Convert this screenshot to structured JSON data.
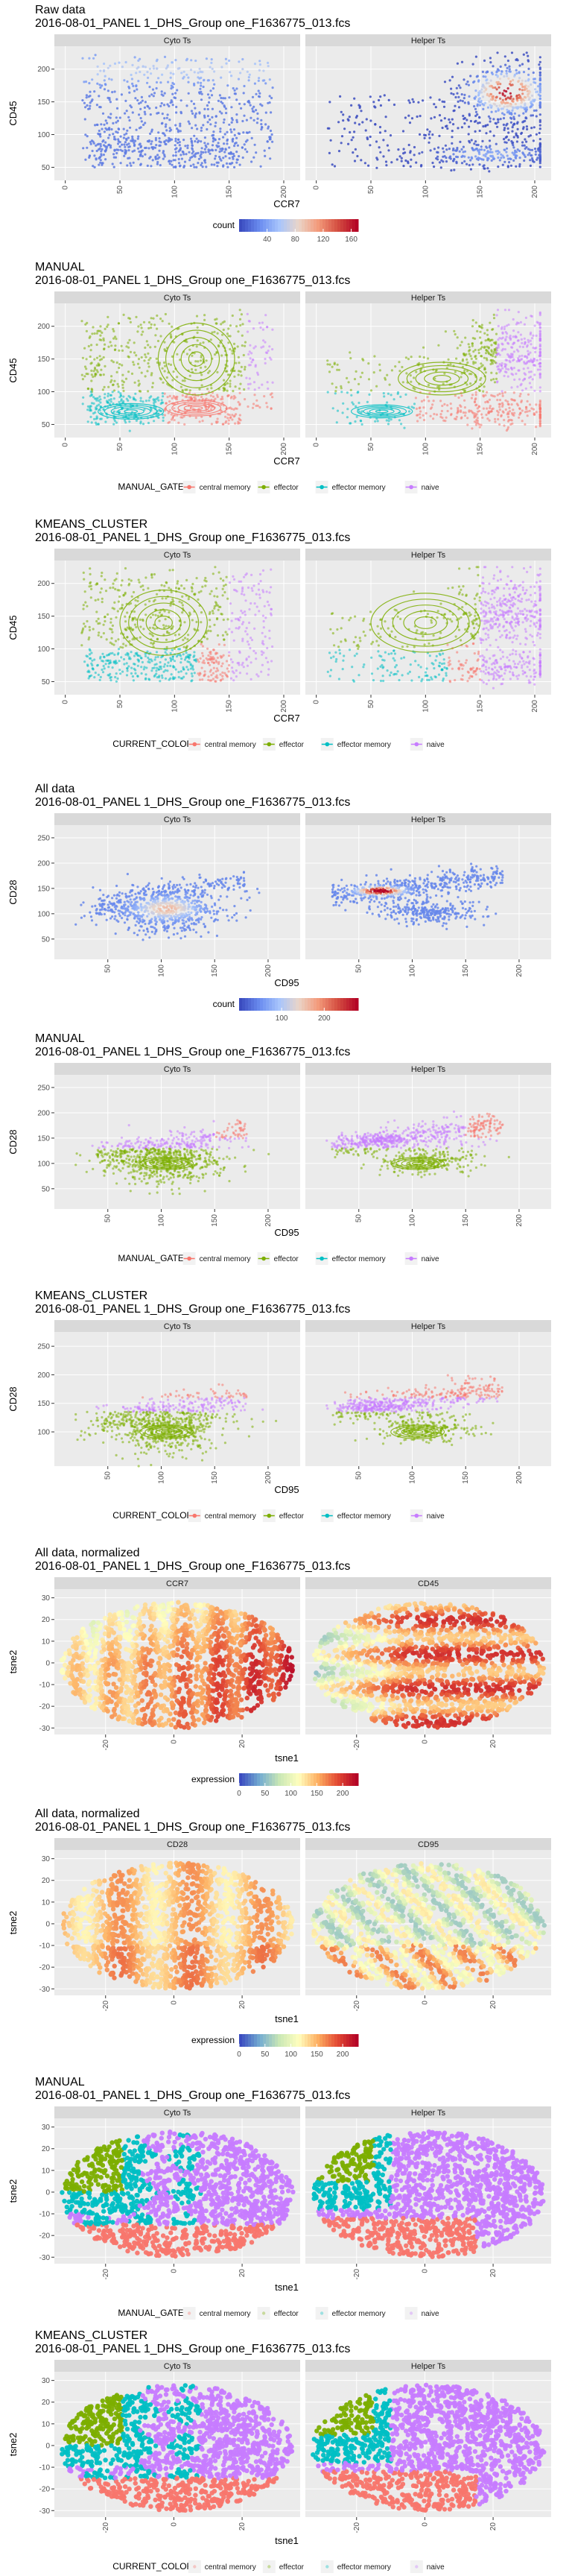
{
  "colors": {
    "panel_bg": "#ebebeb",
    "grid": "#ffffff",
    "strip_bg": "#d9d9d9",
    "central_memory": "#f8766d",
    "effector": "#7cae00",
    "effector_memory": "#00bfc4",
    "naive": "#c77cff",
    "count_low": "#3b4cc0",
    "count_high": "#b40426"
  },
  "chart_data": [
    {
      "type": "scatter",
      "variant": "density",
      "title": "Raw data",
      "subtitle": "2016-08-01_PANEL 1_DHS_Group one_F1636775_013.fcs",
      "facets": [
        "Cyto Ts",
        "Helper Ts"
      ],
      "xlabel": "CCR7",
      "ylabel": "CD45",
      "x_ticks": [
        0,
        50,
        100,
        150,
        200
      ],
      "y_ticks": [
        50,
        100,
        150,
        200
      ],
      "xlim": [
        -10,
        215
      ],
      "ylim": [
        30,
        235
      ],
      "legend": {
        "title": "count",
        "ticks": [
          40,
          80,
          120,
          160
        ],
        "range": [
          0,
          170
        ],
        "position": "bottom"
      }
    },
    {
      "type": "scatter",
      "variant": "gate",
      "title": "MANUAL",
      "subtitle": "2016-08-01_PANEL 1_DHS_Group one_F1636775_013.fcs",
      "facets": [
        "Cyto Ts",
        "Helper Ts"
      ],
      "xlabel": "CCR7",
      "ylabel": "CD45",
      "x_ticks": [
        0,
        50,
        100,
        150,
        200
      ],
      "y_ticks": [
        50,
        100,
        150,
        200
      ],
      "xlim": [
        -10,
        215
      ],
      "ylim": [
        30,
        235
      ],
      "legend": {
        "title": "MANUAL_GATE",
        "items": [
          "central memory",
          "effector",
          "effector memory",
          "naive"
        ],
        "position": "bottom"
      }
    },
    {
      "type": "scatter",
      "variant": "cluster",
      "title": "KMEANS_CLUSTER",
      "subtitle": "2016-08-01_PANEL 1_DHS_Group one_F1636775_013.fcs",
      "facets": [
        "Cyto Ts",
        "Helper Ts"
      ],
      "xlabel": "CCR7",
      "ylabel": "CD45",
      "x_ticks": [
        0,
        50,
        100,
        150,
        200
      ],
      "y_ticks": [
        50,
        100,
        150,
        200
      ],
      "xlim": [
        -10,
        215
      ],
      "ylim": [
        30,
        235
      ],
      "legend": {
        "title": "CURRENT_COLOR",
        "items": [
          "central memory",
          "effector",
          "effector memory",
          "naive"
        ],
        "position": "bottom"
      }
    },
    {
      "type": "scatter",
      "variant": "density",
      "title": "All data",
      "subtitle": "2016-08-01_PANEL 1_DHS_Group one_F1636775_013.fcs",
      "facets": [
        "Cyto Ts",
        "Helper Ts"
      ],
      "xlabel": "CD95",
      "ylabel": "CD28",
      "x_ticks": [
        50,
        100,
        150,
        200
      ],
      "y_ticks": [
        50,
        100,
        150,
        200,
        250
      ],
      "xlim": [
        0,
        230
      ],
      "ylim": [
        10,
        275
      ],
      "legend": {
        "title": "count",
        "ticks": [
          100,
          200
        ],
        "range": [
          0,
          280
        ],
        "position": "bottom"
      }
    },
    {
      "type": "scatter",
      "variant": "gate",
      "title": "MANUAL",
      "subtitle": "2016-08-01_PANEL 1_DHS_Group one_F1636775_013.fcs",
      "facets": [
        "Cyto Ts",
        "Helper Ts"
      ],
      "xlabel": "CD95",
      "ylabel": "CD28",
      "x_ticks": [
        50,
        100,
        150,
        200
      ],
      "y_ticks": [
        50,
        100,
        150,
        200,
        250
      ],
      "xlim": [
        0,
        230
      ],
      "ylim": [
        10,
        275
      ],
      "legend": {
        "title": "MANUAL_GATE",
        "items": [
          "central memory",
          "effector",
          "effector memory",
          "naive"
        ],
        "position": "bottom"
      }
    },
    {
      "type": "scatter",
      "variant": "cluster",
      "title": "KMEANS_CLUSTER",
      "subtitle": "2016-08-01_PANEL 1_DHS_Group one_F1636775_013.fcs",
      "facets": [
        "Cyto Ts",
        "Helper Ts"
      ],
      "xlabel": "CD95",
      "ylabel": "CD28",
      "x_ticks": [
        50,
        100,
        150,
        200
      ],
      "y_ticks": [
        100,
        150,
        200,
        250
      ],
      "xlim": [
        0,
        230
      ],
      "ylim": [
        40,
        275
      ],
      "legend": {
        "title": "CURRENT_COLOR",
        "items": [
          "central memory",
          "effector",
          "effector memory",
          "naive"
        ],
        "position": "bottom"
      }
    },
    {
      "type": "scatter",
      "variant": "tsne_expression",
      "title": "All data, normalized",
      "subtitle": "2016-08-01_PANEL 1_DHS_Group one_F1636775_013.fcs",
      "facets": [
        "CCR7",
        "CD45"
      ],
      "xlabel": "tsne1",
      "ylabel": "tsne2",
      "x_ticks": [
        -20,
        0,
        20
      ],
      "y_ticks": [
        -30,
        -20,
        -10,
        0,
        10,
        20,
        30
      ],
      "xlim": [
        -35,
        37
      ],
      "ylim": [
        -33,
        34
      ],
      "legend": {
        "title": "expression",
        "ticks": [
          0,
          50,
          100,
          150,
          200
        ],
        "range": [
          0,
          230
        ],
        "position": "bottom"
      }
    },
    {
      "type": "scatter",
      "variant": "tsne_expression",
      "title": "All data, normalized",
      "subtitle": "2016-08-01_PANEL 1_DHS_Group one_F1636775_013.fcs",
      "facets": [
        "CD28",
        "CD95"
      ],
      "xlabel": "tsne1",
      "ylabel": "tsne2",
      "x_ticks": [
        -20,
        0,
        20
      ],
      "y_ticks": [
        -30,
        -20,
        -10,
        0,
        10,
        20,
        30
      ],
      "xlim": [
        -35,
        37
      ],
      "ylim": [
        -33,
        34
      ],
      "legend": {
        "title": "expression",
        "ticks": [
          0,
          50,
          100,
          150,
          200
        ],
        "range": [
          0,
          230
        ],
        "position": "bottom"
      }
    },
    {
      "type": "scatter",
      "variant": "tsne_gate",
      "title": "MANUAL",
      "subtitle": "2016-08-01_PANEL 1_DHS_Group one_F1636775_013.fcs",
      "facets": [
        "Cyto Ts",
        "Helper Ts"
      ],
      "xlabel": "tsne1",
      "ylabel": "tsne2",
      "x_ticks": [
        -20,
        0,
        20
      ],
      "y_ticks": [
        -30,
        -20,
        -10,
        0,
        10,
        20,
        30
      ],
      "xlim": [
        -35,
        37
      ],
      "ylim": [
        -33,
        34
      ],
      "legend": {
        "title": "MANUAL_GATE",
        "items": [
          "central memory",
          "effector",
          "effector memory",
          "naive"
        ],
        "position": "bottom"
      }
    },
    {
      "type": "scatter",
      "variant": "tsne_cluster",
      "title": "KMEANS_CLUSTER",
      "subtitle": "2016-08-01_PANEL 1_DHS_Group one_F1636775_013.fcs",
      "facets": [
        "Cyto Ts",
        "Helper Ts"
      ],
      "xlabel": "tsne1",
      "ylabel": "tsne2",
      "x_ticks": [
        -20,
        0,
        20
      ],
      "y_ticks": [
        -30,
        -20,
        -10,
        0,
        10,
        20,
        30
      ],
      "xlim": [
        -35,
        37
      ],
      "ylim": [
        -33,
        34
      ],
      "legend": {
        "title": "CURRENT_COLOR",
        "items": [
          "central memory",
          "effector",
          "effector memory",
          "naive"
        ],
        "position": "bottom"
      }
    }
  ]
}
